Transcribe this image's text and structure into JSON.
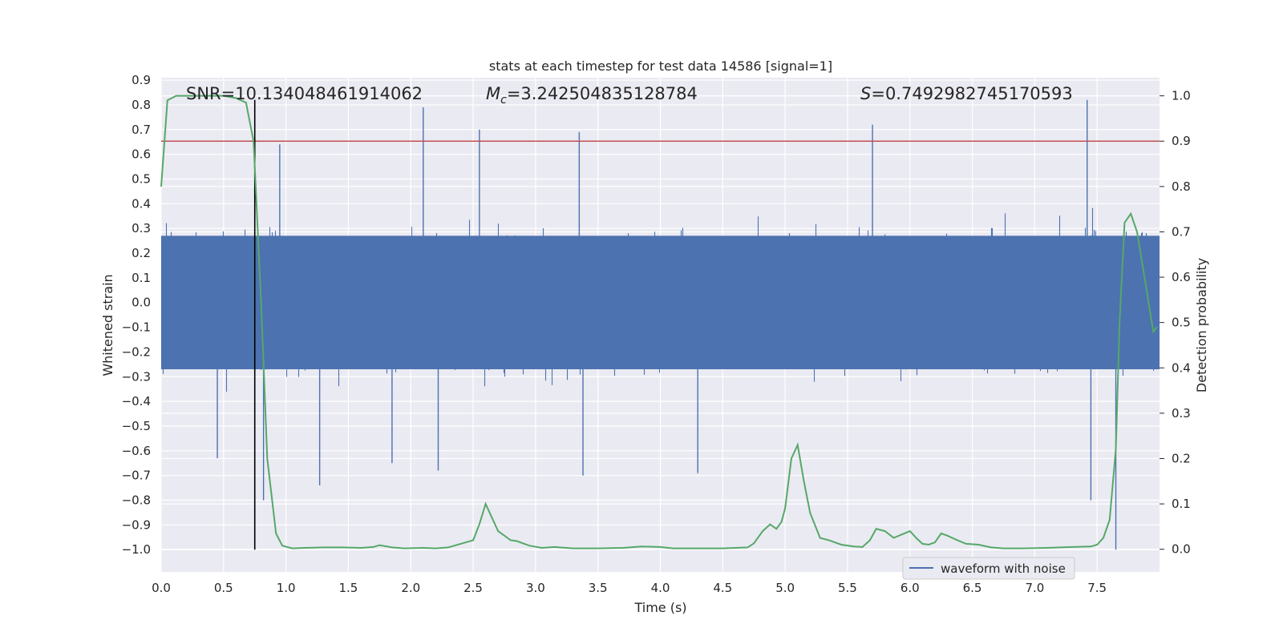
{
  "chart_data": {
    "type": "line",
    "title": "stats at each timestep for test data 14586 [signal=1]",
    "xlabel": "Time (s)",
    "ylabel": "Whitened strain",
    "ylabel_right": "Detection probability",
    "xlim": [
      0.0,
      8.0
    ],
    "ylim": [
      -1.09,
      0.91
    ],
    "ylim_right": [
      -0.05,
      1.04
    ],
    "x_ticks": [
      0.0,
      0.5,
      1.0,
      1.5,
      2.0,
      2.5,
      3.0,
      3.5,
      4.0,
      4.5,
      5.0,
      5.5,
      6.0,
      6.5,
      7.0,
      7.5
    ],
    "x_tick_labels": [
      "0.0",
      "0.5",
      "1.0",
      "1.5",
      "2.0",
      "2.5",
      "3.0",
      "3.5",
      "4.0",
      "4.5",
      "5.0",
      "5.5",
      "6.0",
      "6.5",
      "7.0",
      "7.5"
    ],
    "y_ticks": [
      0.9,
      0.8,
      0.7,
      0.6,
      0.5,
      0.4,
      0.3,
      0.2,
      0.1,
      0.0,
      -0.1,
      -0.2,
      -0.3,
      -0.4,
      -0.5,
      -0.6,
      -0.7,
      -0.8,
      -0.9,
      -1.0
    ],
    "y_tick_labels": [
      "0.9",
      "0.8",
      "0.7",
      "0.6",
      "0.5",
      "0.4",
      "0.3",
      "0.2",
      "0.1",
      "0.0",
      "−0.1",
      "−0.2",
      "−0.3",
      "−0.4",
      "−0.5",
      "−0.6",
      "−0.7",
      "−0.8",
      "−0.9",
      "−1.0"
    ],
    "y_right_ticks": [
      1.0,
      0.9,
      0.8,
      0.7,
      0.6,
      0.5,
      0.4,
      0.3,
      0.2,
      0.1,
      0.0
    ],
    "y_right_tick_labels": [
      "1.0",
      "0.9",
      "0.8",
      "0.7",
      "0.6",
      "0.5",
      "0.4",
      "0.3",
      "0.2",
      "0.1",
      "0.0"
    ],
    "annotations": {
      "snr": "SNR=10.134048461914062",
      "mc_symbol": "M",
      "mc_sub": "c",
      "mc_value": "=3.242504835128784",
      "s_symbol": "S",
      "s_value": "=0.7492982745170593"
    },
    "legend": {
      "label": "waveform with noise",
      "position": "lower-right"
    },
    "threshold_line": {
      "y_right": 0.9,
      "color": "#c44e52"
    },
    "vertical_marker": {
      "x": 0.75,
      "y_range": [
        -1.0,
        0.82
      ],
      "color": "#000000"
    },
    "series": [
      {
        "name": "waveform with noise",
        "color": "#4c72b0",
        "axis": "left",
        "sample_count": 8192,
        "typical_range": [
          -0.27,
          0.27
        ],
        "spikes": [
          {
            "x": 2.1,
            "y": 0.79
          },
          {
            "x": 2.55,
            "y": 0.7
          },
          {
            "x": 3.35,
            "y": 0.69
          },
          {
            "x": 5.7,
            "y": 0.72
          },
          {
            "x": 7.42,
            "y": 0.82
          },
          {
            "x": 0.95,
            "y": 0.64
          },
          {
            "x": 7.65,
            "y": -1.0
          },
          {
            "x": 0.82,
            "y": -0.8
          },
          {
            "x": 1.27,
            "y": -0.74
          },
          {
            "x": 3.38,
            "y": -0.7
          },
          {
            "x": 4.3,
            "y": -0.69
          },
          {
            "x": 0.45,
            "y": -0.63
          },
          {
            "x": 7.45,
            "y": -0.8
          },
          {
            "x": 2.22,
            "y": -0.68
          },
          {
            "x": 1.85,
            "y": -0.65
          }
        ]
      },
      {
        "name": "Detection probability",
        "color": "#55a868",
        "axis": "right",
        "x": [
          0.0,
          0.05,
          0.12,
          0.2,
          0.3,
          0.4,
          0.5,
          0.6,
          0.68,
          0.74,
          0.8,
          0.85,
          0.92,
          0.97,
          1.05,
          1.15,
          1.3,
          1.45,
          1.6,
          1.7,
          1.75,
          1.85,
          1.95,
          2.1,
          2.2,
          2.3,
          2.4,
          2.5,
          2.55,
          2.6,
          2.7,
          2.8,
          2.85,
          2.95,
          3.05,
          3.15,
          3.3,
          3.5,
          3.7,
          3.85,
          4.0,
          4.1,
          4.2,
          4.35,
          4.5,
          4.6,
          4.7,
          4.75,
          4.82,
          4.88,
          4.93,
          4.97,
          5.0,
          5.05,
          5.1,
          5.15,
          5.2,
          5.28,
          5.35,
          5.45,
          5.55,
          5.62,
          5.68,
          5.73,
          5.8,
          5.87,
          5.93,
          6.0,
          6.05,
          6.1,
          6.15,
          6.2,
          6.25,
          6.3,
          6.38,
          6.45,
          6.55,
          6.65,
          6.75,
          6.9,
          7.1,
          7.3,
          7.45,
          7.5,
          7.55,
          7.6,
          7.65,
          7.68,
          7.72,
          7.77,
          7.82,
          7.88,
          7.95,
          7.98
        ],
        "y": [
          0.8,
          0.99,
          1.0,
          1.0,
          1.0,
          1.0,
          1.0,
          0.995,
          0.985,
          0.9,
          0.55,
          0.2,
          0.035,
          0.008,
          0.002,
          0.003,
          0.004,
          0.004,
          0.003,
          0.005,
          0.009,
          0.004,
          0.002,
          0.003,
          0.002,
          0.004,
          0.012,
          0.02,
          0.055,
          0.1,
          0.04,
          0.02,
          0.018,
          0.008,
          0.003,
          0.005,
          0.002,
          0.002,
          0.003,
          0.006,
          0.005,
          0.002,
          0.002,
          0.002,
          0.002,
          0.003,
          0.004,
          0.013,
          0.04,
          0.055,
          0.045,
          0.06,
          0.09,
          0.2,
          0.23,
          0.15,
          0.08,
          0.025,
          0.02,
          0.01,
          0.006,
          0.005,
          0.02,
          0.045,
          0.04,
          0.025,
          0.032,
          0.04,
          0.025,
          0.012,
          0.01,
          0.015,
          0.035,
          0.03,
          0.02,
          0.012,
          0.01,
          0.004,
          0.002,
          0.002,
          0.003,
          0.005,
          0.006,
          0.01,
          0.025,
          0.065,
          0.22,
          0.5,
          0.72,
          0.74,
          0.7,
          0.6,
          0.48,
          0.49
        ]
      }
    ]
  }
}
